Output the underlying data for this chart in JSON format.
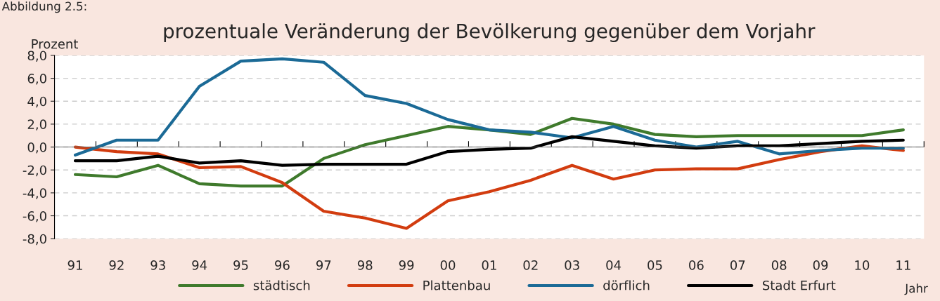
{
  "chart_data": {
    "type": "line",
    "title": "prozentuale Veränderung der Bevölkerung gegenüber dem Vorjahr",
    "ylabel": "Prozent",
    "xlabel": "Jahr",
    "annotations": [
      "Abbildung 2.5:"
    ],
    "categories": [
      "91",
      "92",
      "93",
      "94",
      "95",
      "96",
      "97",
      "98",
      "99",
      "00",
      "01",
      "02",
      "03",
      "04",
      "05",
      "06",
      "07",
      "08",
      "09",
      "10",
      "11"
    ],
    "series": [
      {
        "name": "städtisch",
        "color": "#3f7a2c",
        "values": [
          -2.4,
          -2.6,
          -1.6,
          -3.2,
          -3.4,
          -3.4,
          -1.0,
          0.2,
          1.0,
          1.8,
          1.5,
          1.1,
          2.5,
          2.0,
          1.1,
          0.9,
          1.0,
          1.0,
          1.0,
          1.0,
          1.5
        ]
      },
      {
        "name": "Plattenbau",
        "color": "#d23c0f",
        "values": [
          0.0,
          -0.4,
          -0.6,
          -1.8,
          -1.7,
          -3.1,
          -5.6,
          -6.2,
          -7.1,
          -4.7,
          -3.9,
          -2.9,
          -1.6,
          -2.8,
          -2.0,
          -1.9,
          -1.9,
          -1.1,
          -0.4,
          0.1,
          -0.3
        ]
      },
      {
        "name": "dörflich",
        "color": "#1b6a96",
        "values": [
          -0.7,
          0.6,
          0.6,
          5.3,
          7.5,
          7.7,
          7.4,
          4.5,
          3.8,
          2.4,
          1.5,
          1.3,
          0.8,
          1.8,
          0.6,
          0.0,
          0.5,
          -0.6,
          -0.3,
          -0.1,
          -0.1
        ]
      },
      {
        "name": "Stadt Erfurt",
        "color": "#000000",
        "values": [
          -1.2,
          -1.2,
          -0.8,
          -1.4,
          -1.2,
          -1.6,
          -1.5,
          -1.5,
          -1.5,
          -0.4,
          -0.2,
          -0.1,
          0.9,
          0.5,
          0.1,
          -0.1,
          0.1,
          0.1,
          0.3,
          0.5,
          0.6
        ]
      }
    ],
    "ylim": [
      -8,
      8
    ],
    "yticks": [
      {
        "value": -8,
        "label": "-8,0"
      },
      {
        "value": -6,
        "label": "-6,0"
      },
      {
        "value": -4,
        "label": "-4,0"
      },
      {
        "value": -2,
        "label": "-2,0"
      },
      {
        "value": 0,
        "label": "0,0"
      },
      {
        "value": 2,
        "label": "2,0"
      },
      {
        "value": 4,
        "label": "4,0"
      },
      {
        "value": 6,
        "label": "6,0"
      },
      {
        "value": 8,
        "label": "8,0"
      }
    ],
    "grid": "y",
    "legend": "bottom",
    "line_style": "solid",
    "marker": "none"
  }
}
